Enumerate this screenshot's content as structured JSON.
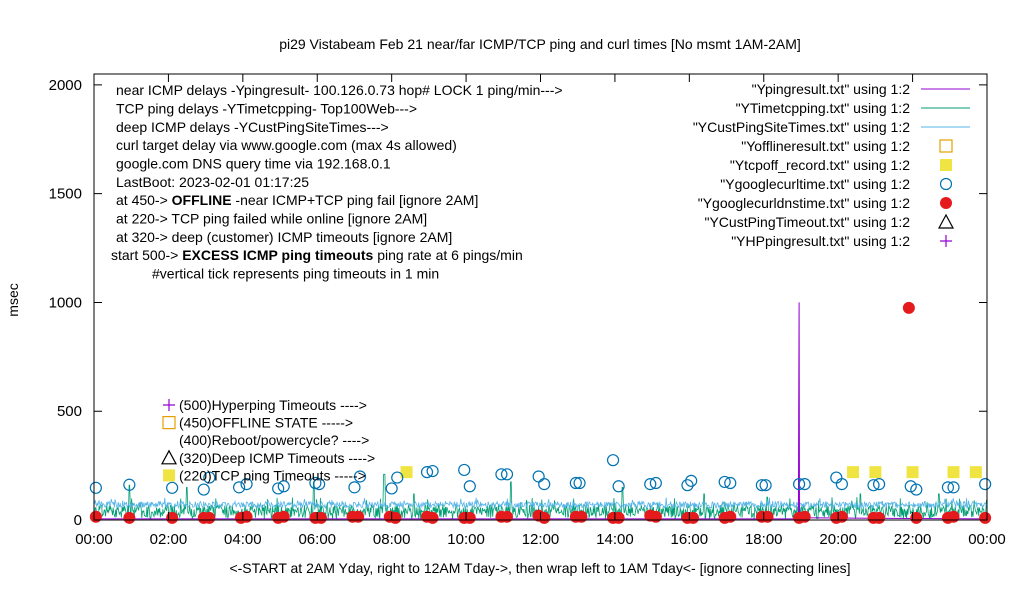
{
  "chart_data": {
    "type": "scatter",
    "title": "pi29 Vistabeam Feb 21  near/far ICMP/TCP ping and curl times [No msmt 1AM-2AM]",
    "xlabel": "<-START at 2AM Yday, right to 12AM Tday->, then wrap left to 1AM Tday<- [ignore connecting lines]",
    "ylabel": "msec",
    "xlim": [
      0,
      24
    ],
    "ylim": [
      0,
      2050
    ],
    "x_ticks": [
      "00:00",
      "02:00",
      "04:00",
      "06:00",
      "08:00",
      "10:00",
      "12:00",
      "14:00",
      "16:00",
      "18:00",
      "20:00",
      "22:00",
      "00:00"
    ],
    "y_ticks": [
      0,
      500,
      1000,
      1500,
      2000
    ],
    "grid": false,
    "legend_position": "top-right",
    "info_lines": [
      "near ICMP delays -Ypingresult- 100.126.0.73 hop# LOCK 1 ping/min--->",
      "TCP ping delays -YTimetcpping- Top100Web--->",
      "deep ICMP delays -YCustPingSiteTimes--->",
      "curl target delay via www.google.com (max 4s allowed)",
      "google.com DNS query time via 192.168.0.1",
      "LastBoot: 2023-02-01 01:17:25"
    ],
    "status_lines": [
      {
        "prefix": "at 450-> ",
        "bold": "OFFLINE",
        "suffix": " -near ICMP+TCP ping fail [ignore 2AM]"
      },
      {
        "prefix": "at 220-> TCP ping failed while online [ignore 2AM]",
        "bold": "",
        "suffix": ""
      },
      {
        "prefix": "at 320-> deep (customer) ICMP timeouts [ignore 2AM]",
        "bold": "",
        "suffix": ""
      },
      {
        "prefix": "start 500-> ",
        "bold": "EXCESS ICMP ping timeouts",
        "suffix": " ping rate at 6 pings/min"
      },
      {
        "prefix": "#vertical tick represents ping timeouts in 1 min",
        "bold": "",
        "suffix": ""
      }
    ],
    "level_labels": [
      {
        "y": 500,
        "label": "(500)Hyperping Timeouts ---->"
      },
      {
        "y": 450,
        "label": "(450)OFFLINE STATE ----->"
      },
      {
        "y": 400,
        "label": "(400)Reboot/powercycle? ---->"
      },
      {
        "y": 320,
        "label": "(320)Deep ICMP Timeouts ---->"
      },
      {
        "y": 220,
        "label": "(220)TCP ping Timeouts ----->"
      }
    ],
    "series": [
      {
        "name": "\"Ypingresult.txt\" using 1:2",
        "style": "line",
        "color": "#9400d3",
        "points": [
          [
            0.0,
            5
          ],
          [
            18.93,
            5
          ],
          [
            18.94,
            500
          ],
          [
            18.95,
            1000
          ],
          [
            18.96,
            10
          ],
          [
            24.0,
            5
          ]
        ]
      },
      {
        "name": "\"YTimetcpping.txt\" using 1:2",
        "style": "noise-line",
        "color": "#009e73",
        "base": 40,
        "amplitude": 60,
        "spikes": [
          [
            0.95,
            160
          ],
          [
            2.5,
            150
          ],
          [
            5.9,
            175
          ],
          [
            7.8,
            210
          ],
          [
            8.6,
            120
          ],
          [
            11.2,
            175
          ],
          [
            14.2,
            150
          ],
          [
            16.4,
            120
          ],
          [
            18.1,
            105
          ],
          [
            20.6,
            120
          ],
          [
            22.7,
            120
          ],
          [
            24.0,
            90
          ]
        ]
      },
      {
        "name": "\"YCustPingSiteTimes.txt\" using 1:2",
        "style": "noise-line",
        "color": "#56b4e9",
        "base": 70,
        "amplitude": 30,
        "spikes": []
      },
      {
        "name": "\"Yofflineresult.txt\" using 1:2",
        "style": "open-square",
        "color": "#e69f00",
        "points": []
      },
      {
        "name": "\"Ytcpoff_record.txt\" using 1:2",
        "style": "filled-square",
        "color": "#f0e442",
        "points": [
          [
            8.4,
            220
          ],
          [
            20.4,
            220
          ],
          [
            21.0,
            220
          ],
          [
            22.0,
            220
          ],
          [
            23.1,
            220
          ],
          [
            23.7,
            220
          ]
        ]
      },
      {
        "name": "\"Ygooglecurltime.txt\" using 1:2",
        "style": "open-circle",
        "color": "#0072b2",
        "points": [
          [
            0.05,
            148
          ],
          [
            0.95,
            162
          ],
          [
            2.1,
            148
          ],
          [
            2.95,
            140
          ],
          [
            3.1,
            195
          ],
          [
            3.9,
            150
          ],
          [
            4.1,
            165
          ],
          [
            4.95,
            145
          ],
          [
            5.1,
            155
          ],
          [
            5.95,
            170
          ],
          [
            6.05,
            165
          ],
          [
            7.0,
            150
          ],
          [
            7.15,
            200
          ],
          [
            8.0,
            145
          ],
          [
            8.15,
            195
          ],
          [
            8.95,
            220
          ],
          [
            9.1,
            225
          ],
          [
            9.95,
            230
          ],
          [
            10.1,
            155
          ],
          [
            10.95,
            210
          ],
          [
            11.1,
            210
          ],
          [
            11.95,
            200
          ],
          [
            12.1,
            165
          ],
          [
            12.95,
            170
          ],
          [
            13.05,
            170
          ],
          [
            13.95,
            275
          ],
          [
            14.1,
            155
          ],
          [
            14.95,
            165
          ],
          [
            15.1,
            170
          ],
          [
            15.95,
            160
          ],
          [
            16.05,
            180
          ],
          [
            16.95,
            175
          ],
          [
            17.1,
            170
          ],
          [
            17.95,
            160
          ],
          [
            18.05,
            160
          ],
          [
            18.95,
            165
          ],
          [
            19.1,
            165
          ],
          [
            19.95,
            195
          ],
          [
            20.1,
            165
          ],
          [
            20.95,
            160
          ],
          [
            21.1,
            165
          ],
          [
            21.95,
            155
          ],
          [
            22.1,
            140
          ],
          [
            22.95,
            150
          ],
          [
            23.1,
            150
          ],
          [
            23.95,
            165
          ]
        ]
      },
      {
        "name": "\"Ygooglecurldnstime.txt\" using 1:2",
        "style": "filled-circle",
        "color": "#e41a1c",
        "points": [
          [
            0.05,
            15
          ],
          [
            0.95,
            10
          ],
          [
            2.1,
            10
          ],
          [
            2.95,
            10
          ],
          [
            3.1,
            10
          ],
          [
            3.95,
            10
          ],
          [
            4.1,
            15
          ],
          [
            4.95,
            10
          ],
          [
            5.1,
            15
          ],
          [
            5.95,
            10
          ],
          [
            6.1,
            10
          ],
          [
            6.95,
            15
          ],
          [
            7.1,
            15
          ],
          [
            7.95,
            15
          ],
          [
            8.1,
            10
          ],
          [
            8.95,
            15
          ],
          [
            9.1,
            10
          ],
          [
            9.95,
            10
          ],
          [
            10.1,
            10
          ],
          [
            10.95,
            15
          ],
          [
            11.1,
            15
          ],
          [
            11.95,
            20
          ],
          [
            12.1,
            10
          ],
          [
            12.95,
            15
          ],
          [
            13.1,
            15
          ],
          [
            13.95,
            10
          ],
          [
            14.1,
            10
          ],
          [
            14.95,
            20
          ],
          [
            15.1,
            15
          ],
          [
            15.95,
            10
          ],
          [
            16.1,
            10
          ],
          [
            16.95,
            10
          ],
          [
            17.1,
            15
          ],
          [
            17.95,
            15
          ],
          [
            18.1,
            15
          ],
          [
            18.95,
            10
          ],
          [
            19.1,
            15
          ],
          [
            19.95,
            10
          ],
          [
            20.1,
            15
          ],
          [
            20.95,
            10
          ],
          [
            21.1,
            10
          ],
          [
            21.9,
            975
          ],
          [
            22.1,
            10
          ],
          [
            22.95,
            10
          ],
          [
            23.1,
            15
          ],
          [
            23.95,
            10
          ]
        ]
      },
      {
        "name": "\"YCustPingTimeout.txt\" using 1:2",
        "style": "open-triangle",
        "color": "#000000",
        "points": []
      },
      {
        "name": "\"YHPpingresult.txt\" using 1:2",
        "style": "plus",
        "color": "#9400d3",
        "points": []
      }
    ]
  }
}
